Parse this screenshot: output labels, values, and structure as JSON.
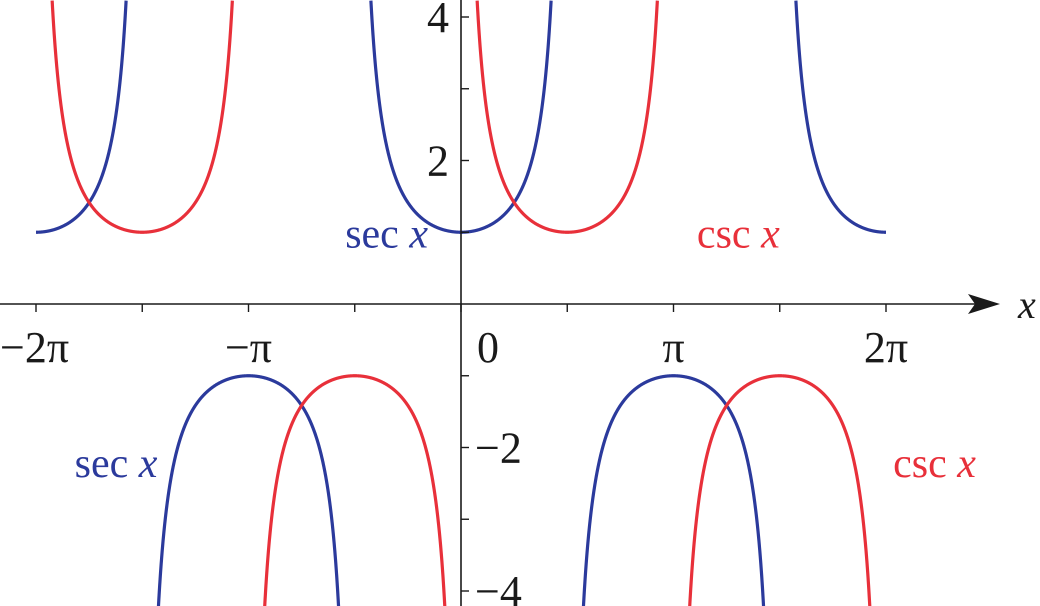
{
  "chart_data": {
    "type": "line",
    "title": "",
    "xlabel": "x",
    "ylabel": "",
    "xlim": [
      -6.2832,
      6.2832
    ],
    "ylim": [
      -4.25,
      4.25
    ],
    "grid": false,
    "x_ticks": [
      {
        "value": -6.2832,
        "label": "−2π"
      },
      {
        "value": -3.1416,
        "label": "−π"
      },
      {
        "value": 0,
        "label": "0"
      },
      {
        "value": 3.1416,
        "label": "π"
      },
      {
        "value": 6.2832,
        "label": "2π"
      }
    ],
    "x_minor_ticks": [
      -4.7124,
      -1.5708,
      1.5708,
      4.7124
    ],
    "y_ticks": [
      {
        "value": 4,
        "label": "4"
      },
      {
        "value": 2,
        "label": "2"
      },
      {
        "value": -2,
        "label": "−2"
      },
      {
        "value": -4,
        "label": "−4"
      }
    ],
    "y_minor_ticks": [
      3,
      1,
      -1,
      -3
    ],
    "series": [
      {
        "name": "sec x",
        "function": "sec",
        "color": "#2b3a9c",
        "domain": [
          -6.2832,
          6.2832
        ]
      },
      {
        "name": "csc x",
        "function": "csc",
        "color": "#e8303a",
        "domain": [
          -6.2832,
          6.2832
        ]
      }
    ],
    "annotations": [
      {
        "series": "sec x",
        "fn": "sec",
        "var": "x",
        "color": "#2b3a9c",
        "at": [
          -1.1,
          1.0
        ]
      },
      {
        "series": "csc x",
        "fn": "csc",
        "var": "x",
        "color": "#e8303a",
        "at": [
          4.1,
          1.0
        ]
      },
      {
        "series": "sec x",
        "fn": "sec",
        "var": "x",
        "color": "#2b3a9c",
        "at": [
          -5.1,
          -2.2
        ]
      },
      {
        "series": "csc x",
        "fn": "csc",
        "var": "x",
        "color": "#e8303a",
        "at": [
          7.0,
          -2.2
        ]
      }
    ]
  }
}
